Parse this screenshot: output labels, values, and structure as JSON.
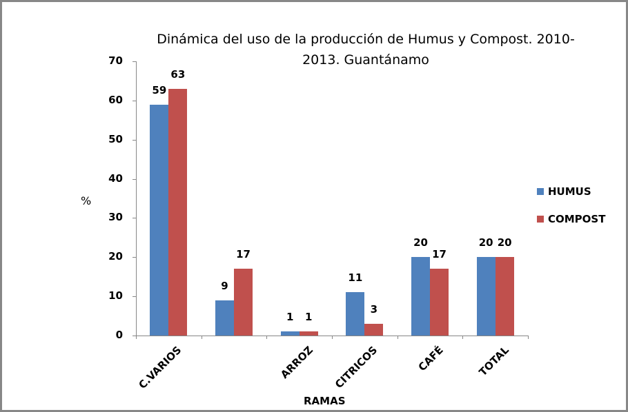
{
  "chart_data": {
    "type": "bar",
    "title": "Dinámica del uso de la producción de Humus y Compost. 2010-2013. Guantánamo",
    "title_lines": [
      "Dinámica del uso de la producción de Humus y Compost. 2010-",
      "2013. Guantánamo"
    ],
    "xlabel": "RAMAS",
    "ylabel": "%",
    "ylim": [
      0,
      70
    ],
    "yticks": [
      0,
      10,
      20,
      30,
      40,
      50,
      60,
      70
    ],
    "grid": false,
    "legend_position": "right",
    "categories": [
      "C.VARIOS",
      "",
      "ARROZ",
      "CITRICOS",
      "CAFÉ",
      "TOTAL"
    ],
    "series": [
      {
        "name": "HUMUS",
        "color": "#4F81BD",
        "values": [
          59,
          9,
          1,
          11,
          20,
          20
        ]
      },
      {
        "name": "COMPOST",
        "color": "#C0504D",
        "values": [
          63,
          17,
          1,
          3,
          17,
          20
        ]
      }
    ],
    "data_labels": true
  }
}
